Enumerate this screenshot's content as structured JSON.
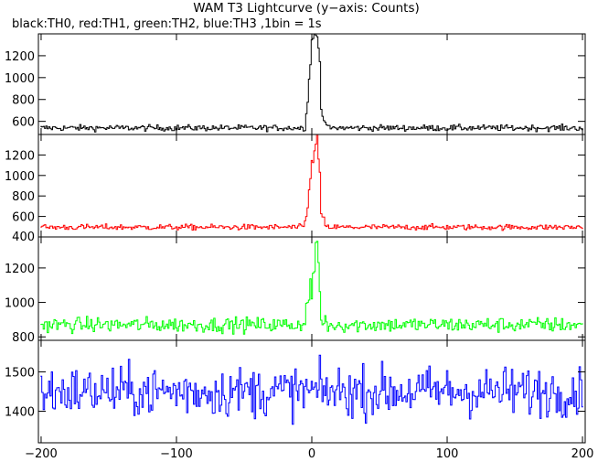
{
  "chart_data": {
    "type": "line",
    "title": "WAM T3 Lightcurve (y−axis: Counts)",
    "subtitle": "black:TH0, red:TH1, green:TH2, blue:TH3 ,1bin = 1s",
    "xlabel": "",
    "ylabel": "",
    "grid": false,
    "xlim": [
      -202,
      202
    ],
    "xticks": [
      "−200",
      "−100",
      "0",
      "100",
      "200"
    ],
    "xtick_values": [
      -200,
      -100,
      0,
      100,
      200
    ],
    "panels": [
      {
        "name": "TH0",
        "color": "#000000",
        "ylim": [
          480,
          1400
        ],
        "yticks": [
          600,
          800,
          1000,
          1200
        ],
        "yticks_labels": [
          "600",
          "800",
          "1000",
          "1200"
        ],
        "baseline": 540,
        "noise": 14,
        "burst": [
          [
            -5,
            560
          ],
          [
            -3,
            800
          ],
          [
            -1,
            1150
          ],
          [
            0,
            1330
          ],
          [
            2,
            1390
          ],
          [
            4,
            1360
          ],
          [
            6,
            1200
          ],
          [
            7,
            700
          ],
          [
            9,
            590
          ],
          [
            12,
            560
          ]
        ]
      },
      {
        "name": "TH1",
        "color": "#ff0000",
        "ylim": [
          400,
          1400
        ],
        "yticks": [
          400,
          600,
          800,
          1000,
          1200
        ],
        "yticks_labels": [
          "400",
          "600",
          "800",
          "1000",
          "1200"
        ],
        "baseline": 495,
        "noise": 14,
        "burst": [
          [
            -5,
            540
          ],
          [
            -3,
            680
          ],
          [
            -1,
            1000
          ],
          [
            0,
            1150
          ],
          [
            1,
            1100
          ],
          [
            2,
            1250
          ],
          [
            4,
            1380
          ],
          [
            6,
            1000
          ],
          [
            7,
            620
          ],
          [
            10,
            520
          ]
        ]
      },
      {
        "name": "TH2",
        "color": "#00ff00",
        "ylim": [
          780,
          1380
        ],
        "yticks": [
          800,
          1000,
          1200
        ],
        "yticks_labels": [
          "800",
          "1000",
          "1200"
        ],
        "baseline": 870,
        "noise": 22,
        "burst": [
          [
            -5,
            900
          ],
          [
            -3,
            1000
          ],
          [
            -1,
            1120
          ],
          [
            0,
            1060
          ],
          [
            2,
            1180
          ],
          [
            4,
            1370
          ],
          [
            6,
            1100
          ],
          [
            7,
            930
          ],
          [
            10,
            890
          ]
        ]
      },
      {
        "name": "TH3",
        "color": "#0000ff",
        "ylim": [
          1320,
          1580
        ],
        "yticks": [
          1400,
          1500
        ],
        "yticks_labels": [
          "1400",
          "1500"
        ],
        "baseline": 1450,
        "noise": 32,
        "burst": []
      }
    ]
  }
}
